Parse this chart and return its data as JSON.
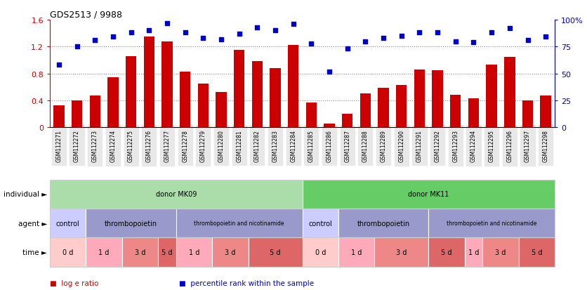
{
  "title": "GDS2513 / 9988",
  "samples": [
    "GSM112271",
    "GSM112272",
    "GSM112273",
    "GSM112274",
    "GSM112275",
    "GSM112276",
    "GSM112277",
    "GSM112278",
    "GSM112279",
    "GSM112280",
    "GSM112281",
    "GSM112282",
    "GSM112283",
    "GSM112284",
    "GSM112285",
    "GSM112286",
    "GSM112287",
    "GSM112288",
    "GSM112289",
    "GSM112290",
    "GSM112291",
    "GSM112292",
    "GSM112293",
    "GSM112294",
    "GSM112295",
    "GSM112296",
    "GSM112297",
    "GSM112298"
  ],
  "log_e_ratio": [
    0.33,
    0.4,
    0.47,
    0.74,
    1.06,
    1.35,
    1.28,
    0.83,
    0.65,
    0.52,
    1.15,
    0.98,
    0.88,
    1.22,
    0.37,
    0.05,
    0.2,
    0.5,
    0.59,
    0.63,
    0.86,
    0.85,
    0.48,
    0.43,
    0.93,
    1.05,
    0.4,
    0.47
  ],
  "percentile_rank": [
    58,
    75,
    81,
    84,
    88,
    90,
    97,
    88,
    83,
    82,
    87,
    93,
    90,
    96,
    78,
    52,
    73,
    80,
    83,
    85,
    88,
    88,
    80,
    79,
    88,
    92,
    81,
    84
  ],
  "bar_color": "#cc0000",
  "dot_color": "#0000cc",
  "ylim_left": [
    0,
    1.6
  ],
  "ylim_right": [
    0,
    100
  ],
  "yticks_left": [
    0,
    0.4,
    0.8,
    1.2,
    1.6
  ],
  "yticks_right": [
    0,
    25,
    50,
    75,
    100
  ],
  "ytick_labels_left": [
    "0",
    "0.4",
    "0.8",
    "1.2",
    "1.6"
  ],
  "ytick_labels_right": [
    "0",
    "25",
    "50",
    "75",
    "100%"
  ],
  "individual_segments": [
    {
      "label": "donor MK09",
      "start": 0,
      "end": 14,
      "color": "#aaddaa"
    },
    {
      "label": "donor MK11",
      "start": 14,
      "end": 28,
      "color": "#66cc66"
    }
  ],
  "agent_segments": [
    {
      "label": "control",
      "start": 0,
      "end": 2,
      "color": "#ccccff"
    },
    {
      "label": "thrombopoietin",
      "start": 2,
      "end": 7,
      "color": "#9999cc"
    },
    {
      "label": "thrombopoietin and nicotinamide",
      "start": 7,
      "end": 14,
      "color": "#9999cc"
    },
    {
      "label": "control",
      "start": 14,
      "end": 16,
      "color": "#ccccff"
    },
    {
      "label": "thrombopoietin",
      "start": 16,
      "end": 21,
      "color": "#9999cc"
    },
    {
      "label": "thrombopoietin and nicotinamide",
      "start": 21,
      "end": 28,
      "color": "#9999cc"
    }
  ],
  "time_segments": [
    {
      "label": "0 d",
      "start": 0,
      "end": 2,
      "color": "#ffcccc"
    },
    {
      "label": "1 d",
      "start": 2,
      "end": 4,
      "color": "#ffaabb"
    },
    {
      "label": "3 d",
      "start": 4,
      "end": 6,
      "color": "#ee8888"
    },
    {
      "label": "5 d",
      "start": 6,
      "end": 7,
      "color": "#dd6666"
    },
    {
      "label": "1 d",
      "start": 7,
      "end": 9,
      "color": "#ffaabb"
    },
    {
      "label": "3 d",
      "start": 9,
      "end": 11,
      "color": "#ee8888"
    },
    {
      "label": "5 d",
      "start": 11,
      "end": 14,
      "color": "#dd6666"
    },
    {
      "label": "0 d",
      "start": 14,
      "end": 16,
      "color": "#ffcccc"
    },
    {
      "label": "1 d",
      "start": 16,
      "end": 18,
      "color": "#ffaabb"
    },
    {
      "label": "3 d",
      "start": 18,
      "end": 21,
      "color": "#ee8888"
    },
    {
      "label": "5 d",
      "start": 21,
      "end": 23,
      "color": "#dd6666"
    },
    {
      "label": "1 d",
      "start": 23,
      "end": 24,
      "color": "#ffaabb"
    },
    {
      "label": "3 d",
      "start": 24,
      "end": 26,
      "color": "#ee8888"
    },
    {
      "label": "5 d",
      "start": 26,
      "end": 28,
      "color": "#dd6666"
    }
  ],
  "row_labels": [
    "individual",
    "agent",
    "time"
  ],
  "legend_items": [
    {
      "label": "log e ratio",
      "color": "#cc0000"
    },
    {
      "label": "percentile rank within the sample",
      "color": "#0000cc"
    }
  ],
  "bg_color": "#ffffff",
  "grid_color": "#555555"
}
